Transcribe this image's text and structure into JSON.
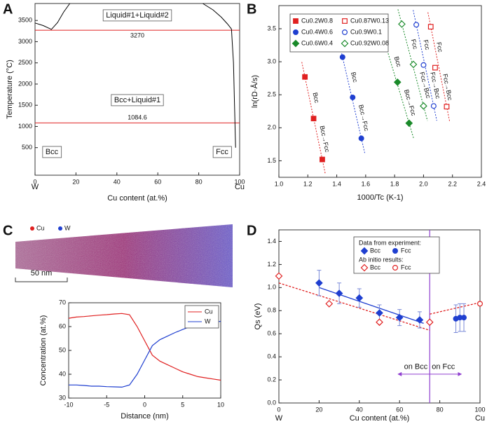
{
  "chart_data": [
    {
      "panel": "A",
      "type": "line",
      "xlabel": "Cu content (at.%)",
      "ylabel": "Temperature (°C)",
      "xlim": [
        0,
        100
      ],
      "xticks": [
        0,
        20,
        40,
        60,
        80,
        100
      ],
      "ylim": [
        -150,
        3900
      ],
      "yticks": [
        500,
        1000,
        1500,
        2000,
        2500,
        3000,
        3500
      ],
      "x_end_labels": [
        "W",
        "Cu"
      ],
      "series": [
        {
          "color": "#000000",
          "x": [
            0,
            4,
            8,
            11,
            14,
            17
          ],
          "values": [
            3440,
            3380,
            3290,
            3450,
            3700,
            3900
          ]
        },
        {
          "color": "#000000",
          "x": [
            82,
            87,
            91,
            94,
            96,
            97,
            97.5,
            98
          ],
          "values": [
            3900,
            3750,
            3580,
            3420,
            3300,
            2500,
            1500,
            500
          ]
        }
      ],
      "hlines": [
        3270,
        1084.6
      ],
      "hline_color": "#e02020",
      "region_labels": [
        "Liquid#1+Liquid#2",
        "Bcc+Liquid#1",
        "Bcc",
        "Fcc"
      ],
      "region_color": "#1f3fd0"
    },
    {
      "panel": "B",
      "type": "scatter",
      "xlabel": "1000/Tc (K-1)",
      "ylabel": "ln(rD·Å/s)",
      "xlim": [
        1.0,
        2.4
      ],
      "xticks": [
        {
          "value": 1,
          "label": "1.0"
        },
        1.2,
        1.4,
        1.6,
        1.8,
        {
          "value": 2,
          "label": "2.0"
        },
        2.2,
        2.4
      ],
      "ylim": [
        1.25,
        3.85
      ],
      "yticks": [
        1.5,
        {
          "value": 2,
          "label": "2.0"
        },
        2.5,
        {
          "value": 3,
          "label": "3.0"
        },
        3.5
      ],
      "fit_lines": true,
      "series": [
        {
          "name": "Cu0.2W0.8",
          "color": "#e02020",
          "marker": "square",
          "filled": true,
          "x": [
            1.18,
            1.24,
            1.3
          ],
          "values": [
            2.77,
            2.14,
            1.52
          ],
          "labels": [
            "Bcc",
            "Bcc→Fcc"
          ]
        },
        {
          "name": "Cu0.4W0.6",
          "color": "#1f3fd0",
          "marker": "circle",
          "filled": true,
          "x": [
            1.44,
            1.51,
            1.57
          ],
          "values": [
            3.07,
            2.46,
            1.84
          ],
          "labels": [
            "Bcc",
            "Bcc→Fcc"
          ]
        },
        {
          "name": "Cu0.6W0.4",
          "color": "#1a8a2a",
          "marker": "diamond",
          "filled": true,
          "x": [
            1.73,
            1.82,
            1.9
          ],
          "values": [
            3.31,
            2.69,
            2.07
          ],
          "labels": [
            "Bcc",
            "Bcc→Fcc"
          ]
        },
        {
          "name": "Cu0.87W0.13",
          "color": "#e02020",
          "marker": "square",
          "filled": false,
          "x": [
            2.05,
            2.08,
            2.16
          ],
          "values": [
            3.53,
            2.91,
            2.32
          ],
          "labels": [
            "Fcc",
            "Fcc→Bcc"
          ]
        },
        {
          "name": "Cu0.9W0.1",
          "color": "#1f3fd0",
          "marker": "circle",
          "filled": false,
          "x": [
            1.95,
            2.0,
            2.07
          ],
          "values": [
            3.56,
            2.95,
            2.33
          ],
          "labels": [
            "Fcc",
            "Fcc→Bcc"
          ]
        },
        {
          "name": "Cu0.92W0.08",
          "color": "#1a8a2a",
          "marker": "diamond",
          "filled": false,
          "x": [
            1.85,
            1.93,
            2.0
          ],
          "values": [
            3.57,
            2.96,
            2.33
          ],
          "labels": [
            "Fcc",
            "Fcc→Bcc"
          ]
        }
      ]
    },
    {
      "panel": "C",
      "type": "line",
      "xlabel": "Distance (nm)",
      "ylabel": "Concentration (at.%)",
      "xlim": [
        -10,
        10
      ],
      "xticks": [
        -10,
        -5,
        0,
        5,
        10
      ],
      "ylim": [
        30,
        70
      ],
      "yticks": [
        30,
        40,
        50,
        60,
        70
      ],
      "series": [
        {
          "name": "Cu",
          "color": "#e02020",
          "x": [
            -10,
            -9,
            -8,
            -7,
            -6,
            -5,
            -4,
            -3,
            -2,
            -1,
            0,
            1,
            2,
            3,
            4,
            5,
            6,
            7,
            8,
            9,
            10
          ],
          "values": [
            63.5,
            64,
            64.2,
            64.5,
            64.8,
            65,
            65.3,
            65.5,
            65,
            60,
            54,
            48,
            45.5,
            44,
            42.5,
            41,
            40,
            39,
            38.5,
            38,
            37.5
          ]
        },
        {
          "name": "W",
          "color": "#1f3fd0",
          "x": [
            -10,
            -9,
            -8,
            -7,
            -6,
            -5,
            -4,
            -3,
            -2,
            -1,
            0,
            1,
            2,
            3,
            4,
            5,
            6,
            7,
            8,
            9,
            10
          ],
          "values": [
            35.5,
            35.5,
            35.3,
            35,
            35,
            34.8,
            34.7,
            34.6,
            35.5,
            40,
            46,
            52,
            54.5,
            56,
            57.5,
            58.8,
            60,
            60.8,
            61.3,
            61.8,
            62.2
          ]
        }
      ]
    },
    {
      "panel": "D",
      "type": "scatter",
      "xlabel": "Cu content (at.%)",
      "ylabel": "Qs (eV)",
      "xlim": [
        0,
        100
      ],
      "xticks": [
        0,
        20,
        40,
        60,
        80,
        100
      ],
      "ylim": [
        0,
        1.5
      ],
      "yticks": [
        {
          "value": 0,
          "label": "0.0"
        },
        0.2,
        0.4,
        0.6,
        0.8,
        {
          "value": 1,
          "label": "1.0"
        },
        1.2,
        1.4
      ],
      "x_end_labels": [
        "W",
        "Cu"
      ],
      "legend_headers": [
        "Data from experiment:",
        "Ab initio results:"
      ],
      "vline": 75,
      "vline_color": "#9040d0",
      "annotations": [
        "on Bcc",
        "on Fcc"
      ],
      "series": [
        {
          "name": "Bcc",
          "color": "#1f3fd0",
          "marker": "diamond",
          "filled": true,
          "x": [
            20,
            30,
            40,
            50,
            60,
            70
          ],
          "values": [
            1.04,
            0.95,
            0.91,
            0.78,
            0.74,
            0.72
          ],
          "errors": [
            0.11,
            0.09,
            0.08,
            0.07,
            0.07,
            0.07
          ]
        },
        {
          "name": "Fcc",
          "color": "#1f3fd0",
          "marker": "circle",
          "filled": true,
          "x": [
            88,
            90,
            92
          ],
          "values": [
            0.73,
            0.74,
            0.74
          ],
          "errors": [
            0.12,
            0.12,
            0.12
          ]
        },
        {
          "name": "Bcc",
          "color": "#e02020",
          "marker": "diamond",
          "filled": false,
          "x": [
            0,
            25,
            50,
            75
          ],
          "values": [
            1.1,
            0.86,
            0.7,
            0.7
          ]
        },
        {
          "name": "Fcc",
          "color": "#e02020",
          "marker": "circle",
          "filled": false,
          "x": [
            100
          ],
          "values": [
            0.86
          ]
        }
      ],
      "fits": [
        {
          "color": "#1f3fd0",
          "dash": false,
          "x": [
            20,
            72
          ],
          "values": [
            1.0,
            0.69
          ]
        },
        {
          "color": "#e02020",
          "dash": true,
          "x": [
            0,
            75
          ],
          "values": [
            1.04,
            0.63
          ]
        },
        {
          "color": "#e02020",
          "dash": true,
          "x": [
            75,
            100
          ],
          "values": [
            0.77,
            0.87
          ]
        }
      ]
    }
  ],
  "atom_map": {
    "panel": "C",
    "legend": [
      "Cu",
      "W"
    ],
    "scale_bar": "50 nm"
  }
}
